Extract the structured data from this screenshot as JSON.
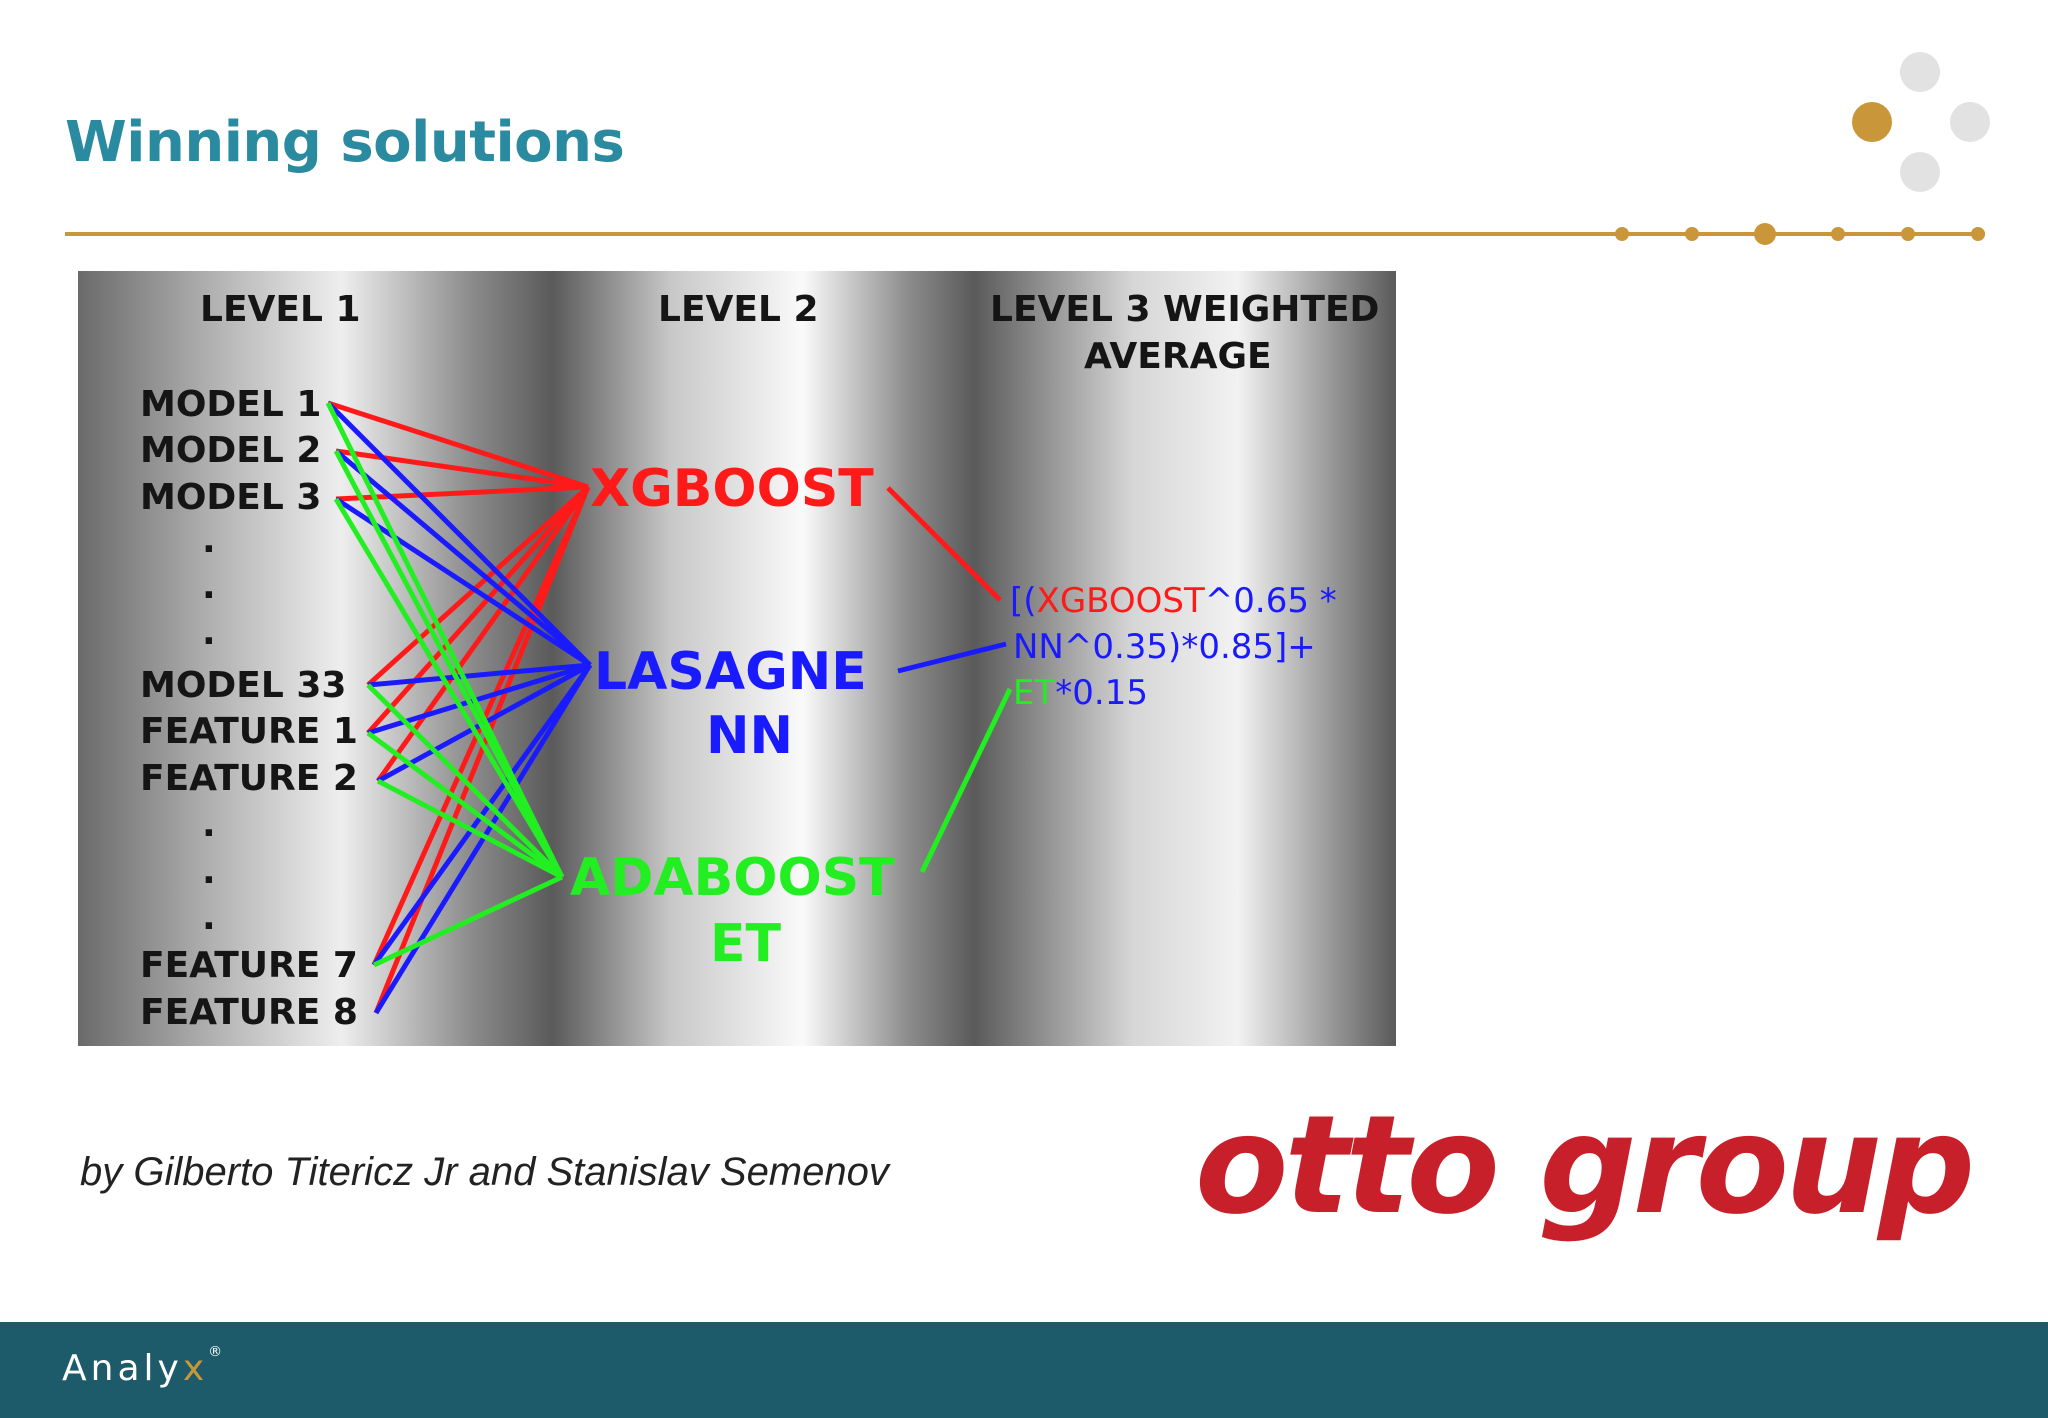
{
  "slide": {
    "title": "Winning solutions"
  },
  "diagram": {
    "level_headings": [
      "LEVEL 1",
      "LEVEL 2",
      "LEVEL 3 WEIGHTED",
      "AVERAGE"
    ],
    "level1_items": [
      "MODEL 1",
      "MODEL 2",
      "MODEL 3",
      "MODEL 33",
      "FEATURE 1",
      "FEATURE 2",
      "FEATURE 7",
      "FEATURE 8"
    ],
    "ellipsis": ".",
    "level2_nodes": [
      "XGBOOST",
      "LASAGNE",
      "NN",
      "ADABOOST",
      "ET"
    ],
    "formula": [
      "[(",
      "XGBOOST",
      "^0.65 *",
      "NN^0.35)*0.85]+",
      "ET",
      "*0.15"
    ],
    "colors": {
      "xgboost": "#ff1a1a",
      "lasagne_nn": "#1a1aff",
      "adaboost_et": "#22ee22"
    }
  },
  "byline": "by Gilberto Titericz Jr and Stanislav Semenov",
  "partner_logo": "otto group",
  "footer": {
    "brand": "Analy",
    "brand_x": "x",
    "brand_mark": "®"
  },
  "colors": {
    "title": "#2a8a9f",
    "accent": "#c9973a",
    "footer": "#1d5b6a",
    "otto": "#c8202a"
  }
}
